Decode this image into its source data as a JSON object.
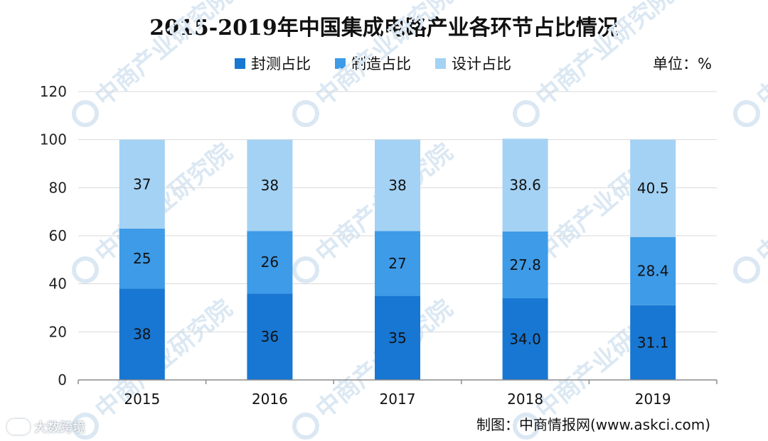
{
  "title": "2015-2019年中国集成电路产业各环节占比情况",
  "unit_label": "单位：%",
  "source_label": "制图：中商情报网(www.askci.com)",
  "watermark": {
    "text": "中商产业研究院",
    "corner_text": "大数跨境"
  },
  "colors": {
    "packaging": "#1877d2",
    "manufacturing": "#3d9be8",
    "design": "#a4d2f4",
    "grid": "#d9d9d9",
    "axis": "#8c8c8c"
  },
  "chart_data": {
    "type": "bar",
    "stacked": true,
    "title": "2015-2019年中国集成电路产业各环节占比情况",
    "xlabel": "",
    "ylabel": "",
    "categories": [
      "2015",
      "2016",
      "2017",
      "2018",
      "2019"
    ],
    "ylim": [
      0,
      120
    ],
    "yticks": [
      "0",
      "20",
      "40",
      "60",
      "80",
      "100",
      "120"
    ],
    "grid": true,
    "legend_position": "top",
    "series": [
      {
        "name": "封测占比",
        "values": [
          38,
          36,
          35,
          34.0,
          31.1
        ],
        "labels": [
          "38",
          "36",
          "35",
          "34.0",
          "31.1"
        ]
      },
      {
        "name": "制造占比",
        "values": [
          25,
          26,
          27,
          27.8,
          28.4
        ],
        "labels": [
          "25",
          "26",
          "27",
          "27.8",
          "28.4"
        ]
      },
      {
        "name": "设计占比",
        "values": [
          37,
          38,
          38,
          38.6,
          40.5
        ],
        "labels": [
          "37",
          "38",
          "38",
          "38.6",
          "40.5"
        ]
      }
    ]
  }
}
